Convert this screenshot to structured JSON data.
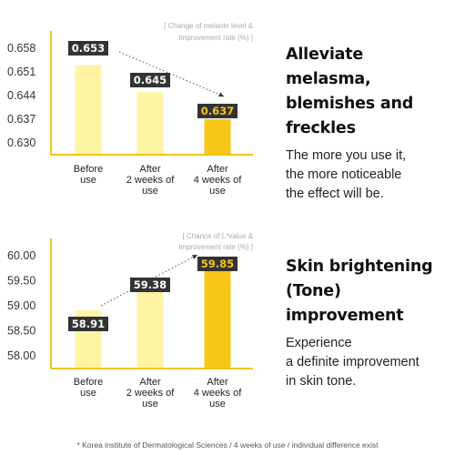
{
  "chart_data": [
    {
      "type": "bar",
      "note": [
        "[ Change of melanin level &",
        "Improvement rate (%) ]"
      ],
      "categories": [
        [
          "Before",
          "use"
        ],
        [
          "After",
          "2 weeks of",
          "use"
        ],
        [
          "After",
          "4 weeks of",
          "use"
        ]
      ],
      "values": [
        0.653,
        0.645,
        0.637
      ],
      "value_labels": [
        "0.653",
        "0.645",
        "0.637"
      ],
      "ticks": [
        "0.658",
        "0.651",
        "0.644",
        "0.637",
        "0.630"
      ],
      "tick_values": [
        0.658,
        0.651,
        0.644,
        0.637,
        0.63
      ],
      "ylim": [
        0.6265,
        0.661
      ],
      "trend": "down",
      "colors": {
        "light": "#fff4a3",
        "strong": "#f8c619",
        "axis": "#f3c317",
        "label_bg": "#333333",
        "label_text": "#ffffff",
        "label_text_strong": "#f8c619"
      }
    },
    {
      "type": "bar",
      "note": [
        "[ Chance of L*value &",
        "Improvement rate (%) ]"
      ],
      "categories": [
        [
          "Before",
          "use"
        ],
        [
          "After",
          "2 weeks of",
          "use"
        ],
        [
          "After",
          "4 weeks of",
          "use"
        ]
      ],
      "values": [
        58.91,
        59.38,
        59.85
      ],
      "value_labels": [
        "58.91",
        "59.38",
        "59.85"
      ],
      "ticks": [
        "60.00",
        "59.50",
        "59.00",
        "58.50",
        "58.00"
      ],
      "tick_values": [
        60.0,
        59.5,
        59.0,
        58.5,
        58.0
      ],
      "ylim": [
        57.75,
        60.2
      ],
      "trend": "up",
      "colors": {
        "light": "#fff4a3",
        "strong": "#f8c619",
        "axis": "#f3c317",
        "label_bg": "#333333",
        "label_text": "#ffffff",
        "label_text_strong": "#f8c619"
      }
    }
  ],
  "sections": [
    {
      "headline": [
        "Alleviate melasma,",
        "blemishes and",
        "freckles"
      ],
      "description": [
        "The more you use it,",
        "the more noticeable",
        "the effect will be."
      ]
    },
    {
      "headline": [
        "Skin brightening",
        "(Tone)",
        "improvement"
      ],
      "description": [
        "Experience",
        "a definite improvement",
        "in skin tone."
      ]
    }
  ],
  "footnote": "* Korea institute of Dermatological Sciences / 4 weeks of use / individual difference exist"
}
